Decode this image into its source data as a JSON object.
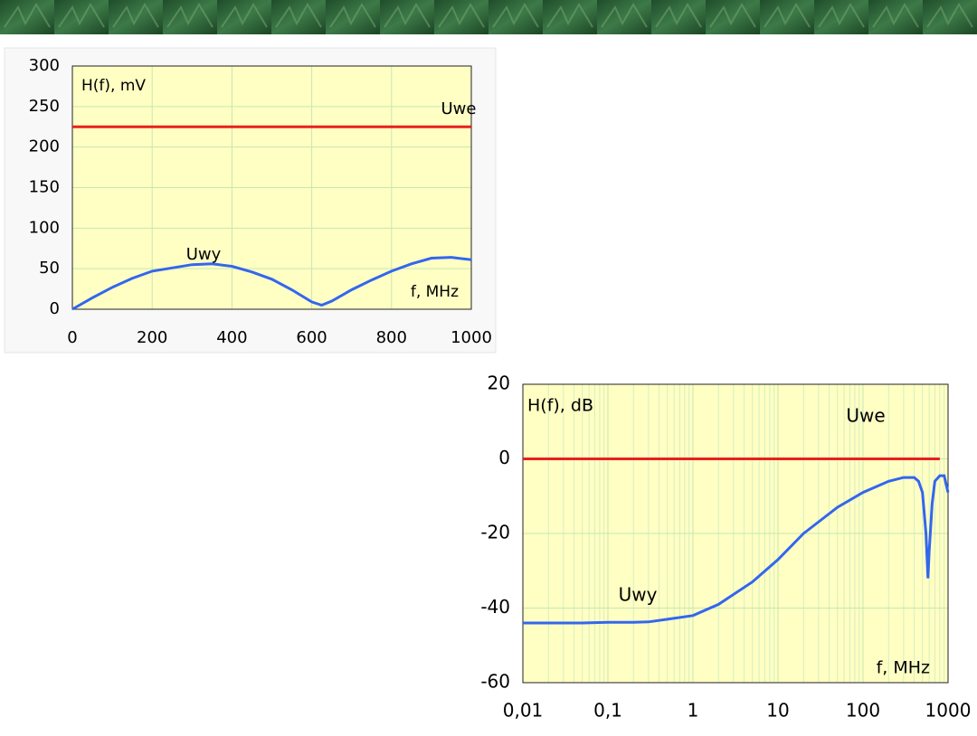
{
  "chart_data": [
    {
      "type": "line",
      "y_label": "H(f), mV",
      "x_label": "f, MHz",
      "xlim": [
        0,
        1000
      ],
      "xticks": [
        0,
        200,
        400,
        600,
        800,
        1000
      ],
      "ylim": [
        0,
        300
      ],
      "yticks": [
        0,
        50,
        100,
        150,
        200,
        250,
        300
      ],
      "grid": true,
      "series": [
        {
          "name": "Uwe",
          "color": "#e8201c",
          "x": [
            0,
            1000
          ],
          "values": [
            225,
            225
          ]
        },
        {
          "name": "Uwy",
          "color": "#3366ee",
          "x": [
            0,
            50,
            100,
            150,
            200,
            250,
            300,
            350,
            400,
            450,
            500,
            550,
            600,
            625,
            650,
            700,
            750,
            800,
            850,
            900,
            950,
            1000
          ],
          "values": [
            0,
            14,
            27,
            38,
            47,
            51,
            55,
            56,
            53,
            46,
            37,
            24,
            9,
            5,
            10,
            24,
            36,
            47,
            56,
            63,
            64,
            61
          ]
        }
      ]
    },
    {
      "type": "line",
      "y_label": "H(f), dB",
      "x_label": "f, MHz",
      "xlog": true,
      "xlim": [
        0.01,
        1000
      ],
      "xticks": [
        {
          "value": 0.01,
          "label": "0,01"
        },
        {
          "value": 0.1,
          "label": "0,1"
        },
        1,
        10,
        100,
        1000
      ],
      "ylim": [
        -60,
        20
      ],
      "yticks": [
        -60,
        -40,
        -20,
        0,
        20
      ],
      "grid": true,
      "series": [
        {
          "name": "Uwe",
          "color": "#e8201c",
          "x": [
            0.01,
            800
          ],
          "values": [
            0,
            0
          ]
        },
        {
          "name": "Uwy",
          "color": "#3366ee",
          "x": [
            0.01,
            0.02,
            0.05,
            0.1,
            0.2,
            0.3,
            0.5,
            1,
            2,
            5,
            10,
            20,
            50,
            100,
            200,
            300,
            400,
            450,
            500,
            550,
            580,
            600,
            650,
            700,
            800,
            900,
            1000
          ],
          "values": [
            -44,
            -44,
            -44,
            -43.8,
            -43.8,
            -43.7,
            -43,
            -42,
            -39,
            -33,
            -27,
            -20,
            -13,
            -9,
            -6,
            -5,
            -5,
            -6,
            -9,
            -20,
            -32,
            -25,
            -12,
            -6,
            -4.5,
            -4.5,
            -9
          ]
        }
      ]
    }
  ]
}
